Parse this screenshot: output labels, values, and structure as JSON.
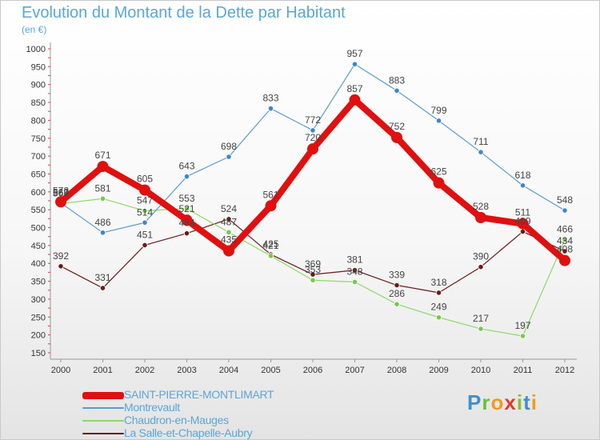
{
  "title": "Evolution du Montant de la Dette par Habitant",
  "subtitle": "(en €)",
  "logo": "Proxiti",
  "colors": {
    "main": "#e01010",
    "montrevault": "#5b9bd5",
    "chaudron": "#8fd86a",
    "lasalle": "#6a1a1a",
    "axis": "#999999",
    "label": "#5aa6d8"
  },
  "chart_data": {
    "type": "line",
    "x": [
      2000,
      2001,
      2002,
      2003,
      2004,
      2005,
      2006,
      2007,
      2008,
      2009,
      2010,
      2011,
      2012
    ],
    "ylim": [
      150,
      1000
    ],
    "yticks": [
      150,
      200,
      250,
      300,
      350,
      400,
      450,
      500,
      550,
      600,
      650,
      700,
      750,
      800,
      850,
      900,
      950,
      1000
    ],
    "grid": false,
    "legend_position": "bottom-left",
    "series": [
      {
        "name": "SAINT-PIERRE-MONTLIMART",
        "values": [
          572,
          671,
          605,
          521,
          435,
          561,
          720,
          857,
          752,
          625,
          528,
          511,
          408
        ]
      },
      {
        "name": "Montrevault",
        "values": [
          569,
          486,
          514,
          643,
          698,
          833,
          772,
          957,
          883,
          799,
          711,
          618,
          548
        ]
      },
      {
        "name": "Chaudron-en-Mauges",
        "values": [
          567,
          581,
          547,
          553,
          487,
          421,
          353,
          348,
          286,
          249,
          217,
          197,
          466
        ]
      },
      {
        "name": "La Salle-et-Chapelle-Aubry",
        "values": [
          392,
          331,
          451,
          484,
          524,
          425,
          369,
          381,
          339,
          318,
          390,
          489,
          434
        ]
      }
    ]
  }
}
